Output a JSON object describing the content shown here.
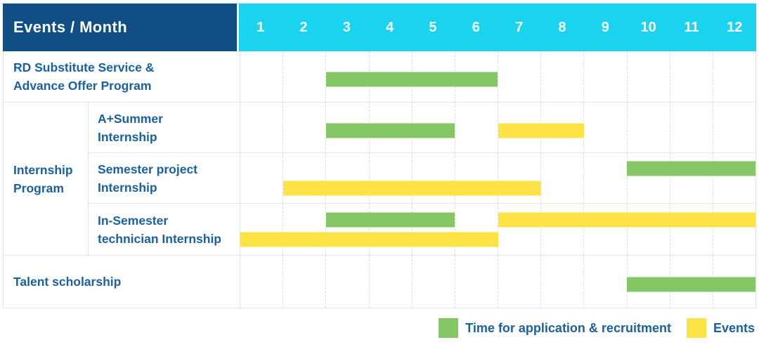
{
  "header": {
    "title": "Events / Month"
  },
  "colors": {
    "navy": "#124e86",
    "cyan": "#1ad3ee",
    "green": "#85c665",
    "yellow": "#fde345",
    "blue": "#1a60a2",
    "grid": "#e3e3e3",
    "griddash": "#dedede"
  },
  "chart_data": {
    "type": "gantt",
    "x_unit": "month",
    "x_ticks": [
      "1",
      "2",
      "3",
      "4",
      "5",
      "6",
      "7",
      "8",
      "9",
      "10",
      "11",
      "12"
    ],
    "x_range": [
      1,
      12
    ],
    "grid": "vertical-dashed",
    "legend_position": "bottom-right",
    "legend": [
      {
        "type": "application",
        "label": "Time for application & recruitment",
        "color": "#85c665"
      },
      {
        "type": "event",
        "label": "Events",
        "color": "#fde345"
      }
    ],
    "rows": [
      {
        "label": "RD Substitute Service & Advance Offer Program",
        "label_lines": [
          "RD Substitute Service &",
          "Advance Offer Program"
        ],
        "bars": [
          {
            "type": "application",
            "start_month": 3,
            "end_month": 6,
            "line": "center"
          }
        ]
      },
      {
        "group_label": "Internship Program",
        "group_label_lines": [
          "Internship",
          "Program"
        ],
        "items": [
          {
            "label": "A+Summer Internship",
            "label_lines": [
              "A+Summer",
              "Internship"
            ],
            "bars": [
              {
                "type": "application",
                "start_month": 3,
                "end_month": 5,
                "line": "center"
              },
              {
                "type": "event",
                "start_month": 7,
                "end_month": 8,
                "line": "center"
              }
            ]
          },
          {
            "label": "Semester project Internship",
            "label_lines": [
              "Semester project",
              "Internship"
            ],
            "bars": [
              {
                "type": "application",
                "start_month": 10,
                "end_month": 12,
                "line": "top"
              },
              {
                "type": "event",
                "start_month": 2,
                "end_month": 7,
                "line": "bottom"
              }
            ]
          },
          {
            "label": "In-Semester technician Internship",
            "label_lines": [
              "In-Semester",
              "technician Internship"
            ],
            "bars": [
              {
                "type": "application",
                "start_month": 3,
                "end_month": 5,
                "line": "top"
              },
              {
                "type": "event",
                "start_month": 7,
                "end_month": 12,
                "line": "top"
              },
              {
                "type": "event",
                "start_month": 1,
                "end_month": 6,
                "line": "bottom"
              }
            ]
          }
        ]
      },
      {
        "label": "Talent scholarship",
        "label_lines": [
          "Talent scholarship"
        ],
        "bars": [
          {
            "type": "application",
            "start_month": 10,
            "end_month": 12,
            "line": "center"
          }
        ]
      }
    ]
  }
}
